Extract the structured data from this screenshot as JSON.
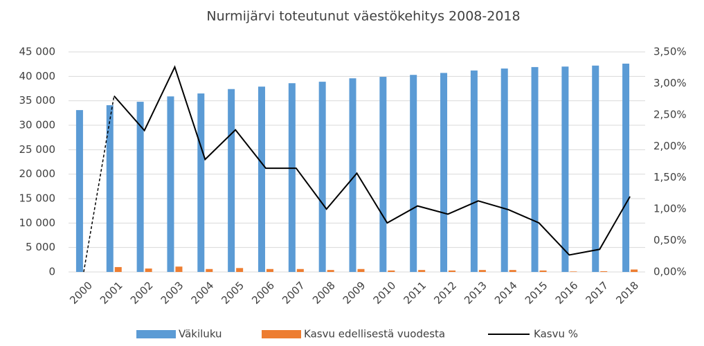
{
  "chart_data": {
    "type": "bar_line_combo",
    "title": "Nurmijärvi toteutunut väestökehitys 2008-2018",
    "categories": [
      "2000",
      "2001",
      "2002",
      "2003",
      "2004",
      "2005",
      "2006",
      "2007",
      "2008",
      "2009",
      "2010",
      "2011",
      "2012",
      "2013",
      "2014",
      "2015",
      "2016",
      "2017",
      "2018"
    ],
    "series": [
      {
        "name": "Väkiluku",
        "type": "bar",
        "color": "#5b9bd5",
        "values": [
          33100,
          34100,
          34800,
          35900,
          36500,
          37400,
          37900,
          38600,
          38900,
          39600,
          39900,
          40300,
          40700,
          41200,
          41600,
          41900,
          42000,
          42200,
          42600
        ]
      },
      {
        "name": "Kasvu edellisestä vuodesta",
        "type": "bar",
        "color": "#ed7d31",
        "values": [
          0,
          1000,
          700,
          1100,
          600,
          800,
          600,
          600,
          400,
          600,
          300,
          400,
          300,
          400,
          400,
          300,
          100,
          150,
          500
        ]
      },
      {
        "name": "Kasvu %",
        "type": "line",
        "axis": "y2",
        "color": "#000000",
        "values": [
          0,
          2.8,
          2.25,
          3.26,
          1.79,
          2.26,
          1.65,
          1.65,
          1.0,
          1.57,
          0.78,
          1.05,
          0.92,
          1.13,
          0.99,
          0.78,
          0.27,
          0.36,
          1.2
        ]
      }
    ],
    "ylim": [
      0,
      45000
    ],
    "yticks": [
      0,
      {
        "value": 5000,
        "label": "5 000"
      },
      {
        "value": 10000,
        "label": "10 000"
      },
      {
        "value": 15000,
        "label": "15 000"
      },
      {
        "value": 20000,
        "label": "20 000"
      },
      {
        "value": 25000,
        "label": "25 000"
      },
      {
        "value": 30000,
        "label": "30 000"
      },
      {
        "value": 35000,
        "label": "35 000"
      },
      {
        "value": 40000,
        "label": "40 000"
      },
      {
        "value": 45000,
        "label": "45 000"
      }
    ],
    "y2lim": [
      0,
      3.5
    ],
    "y2ticks": [
      {
        "value": 0,
        "label": "0,00%"
      },
      {
        "value": 0.5,
        "label": "0,50%"
      },
      {
        "value": 1,
        "label": "1,00%"
      },
      {
        "value": 1.5,
        "label": "1,50%"
      },
      {
        "value": 2,
        "label": "2,00%"
      },
      {
        "value": 2.5,
        "label": "2,50%"
      },
      {
        "value": 3,
        "label": "3,00%"
      },
      {
        "value": 3.5,
        "label": "3,50%"
      }
    ],
    "grid": true,
    "legend": "bottom"
  }
}
